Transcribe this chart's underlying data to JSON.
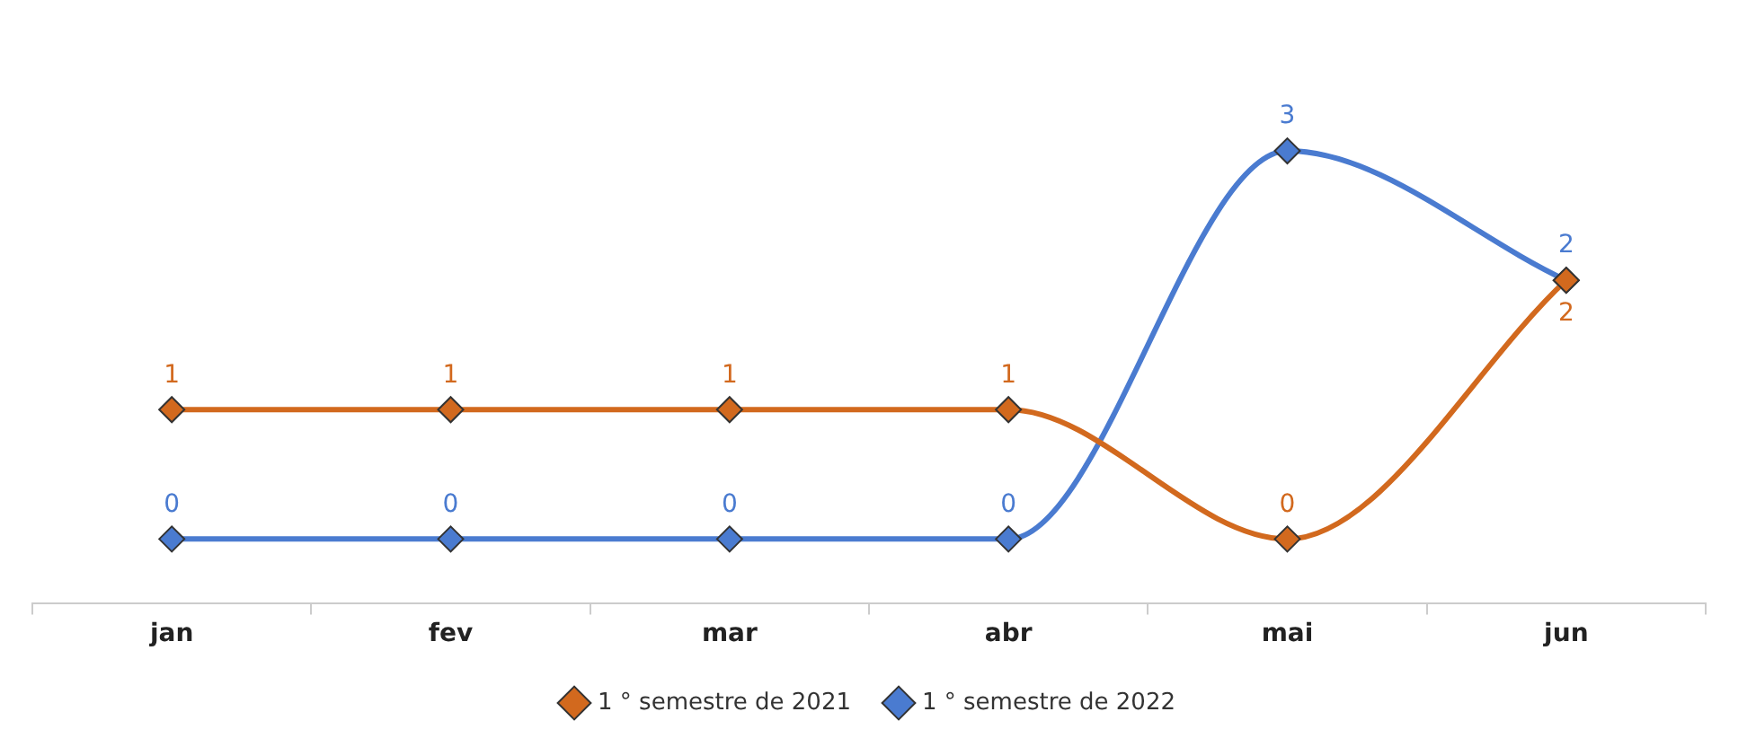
{
  "chart_data": {
    "type": "line",
    "categories": [
      "jan",
      "fev",
      "mar",
      "abr",
      "mai",
      "jun"
    ],
    "series": [
      {
        "name": "1 ° semestre de 2021",
        "color": "#d2691e",
        "values": [
          1,
          1,
          1,
          1,
          0,
          2
        ]
      },
      {
        "name": "1 ° semestre de 2022",
        "color": "#4a7bd0",
        "values": [
          0,
          0,
          0,
          0,
          3,
          2
        ]
      }
    ],
    "data_labels": true,
    "legend": "bottom",
    "marker": "diamond",
    "line_style": "solid",
    "grid": false
  }
}
